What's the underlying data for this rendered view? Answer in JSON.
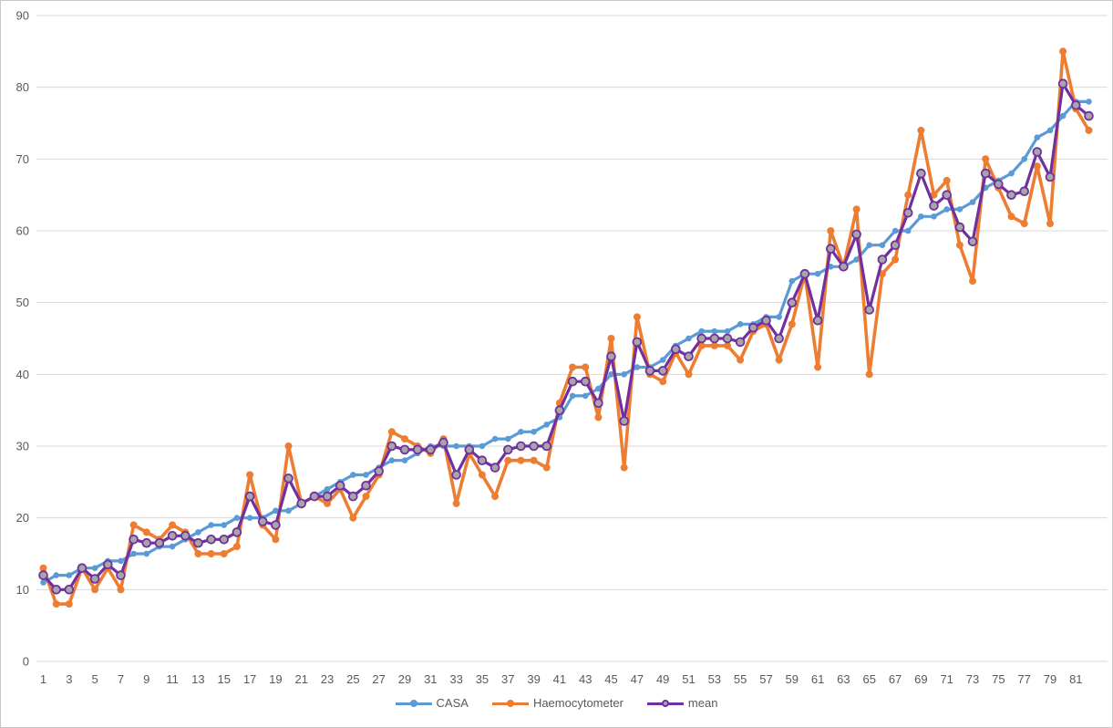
{
  "chart_data": {
    "type": "line",
    "title": "",
    "xlabel": "",
    "ylabel": "",
    "ylim": [
      0,
      90
    ],
    "ytick_step": 10,
    "grid": true,
    "legend_position": "bottom",
    "y_tick_labels": [
      "0",
      "10",
      "20",
      "30",
      "40",
      "50",
      "60",
      "70",
      "80",
      "90"
    ],
    "x_tick_labels": [
      "1",
      "3",
      "5",
      "7",
      "9",
      "11",
      "13",
      "15",
      "17",
      "19",
      "21",
      "23",
      "25",
      "27",
      "29",
      "31",
      "33",
      "35",
      "37",
      "39",
      "41",
      "43",
      "45",
      "47",
      "49",
      "51",
      "53",
      "55",
      "57",
      "59",
      "61",
      "63",
      "65",
      "67",
      "69",
      "71",
      "73",
      "75",
      "77",
      "79",
      "81"
    ],
    "x": [
      1,
      2,
      3,
      4,
      5,
      6,
      7,
      8,
      9,
      10,
      11,
      12,
      13,
      14,
      15,
      16,
      17,
      18,
      19,
      20,
      21,
      22,
      23,
      24,
      25,
      26,
      27,
      28,
      29,
      30,
      31,
      32,
      33,
      34,
      35,
      36,
      37,
      38,
      39,
      40,
      41,
      42,
      43,
      44,
      45,
      46,
      47,
      48,
      49,
      50,
      51,
      52,
      53,
      54,
      55,
      56,
      57,
      58,
      59,
      60,
      61,
      62,
      63,
      64,
      65,
      66,
      67,
      68,
      69,
      70,
      71,
      72,
      73,
      74,
      75,
      76,
      77,
      78,
      79,
      80,
      81,
      82
    ],
    "series": [
      {
        "name": "CASA",
        "color": "#5B9BD5",
        "marker": "circle",
        "values": [
          11,
          12,
          12,
          13,
          13,
          14,
          14,
          15,
          15,
          16,
          16,
          17,
          18,
          19,
          19,
          20,
          20,
          20,
          21,
          21,
          22,
          23,
          24,
          25,
          26,
          26,
          27,
          28,
          28,
          29,
          30,
          30,
          30,
          30,
          30,
          31,
          31,
          32,
          32,
          33,
          34,
          37,
          37,
          38,
          40,
          40,
          41,
          41,
          42,
          44,
          45,
          46,
          46,
          46,
          47,
          47,
          48,
          48,
          53,
          54,
          54,
          55,
          55,
          56,
          58,
          58,
          60,
          60,
          62,
          62,
          63,
          63,
          64,
          66,
          67,
          68,
          70,
          73,
          74,
          76,
          78,
          78
        ]
      },
      {
        "name": "Haemocytometer",
        "color": "#ED7D31",
        "marker": "circle",
        "values": [
          13,
          8,
          8,
          13,
          10,
          13,
          10,
          19,
          18,
          17,
          19,
          18,
          15,
          15,
          15,
          16,
          26,
          19,
          17,
          30,
          22,
          23,
          22,
          24,
          20,
          23,
          26,
          32,
          31,
          30,
          29,
          31,
          22,
          29,
          26,
          23,
          28,
          28,
          28,
          27,
          36,
          41,
          41,
          34,
          45,
          27,
          48,
          40,
          39,
          43,
          40,
          44,
          44,
          44,
          42,
          46,
          47,
          42,
          47,
          54,
          41,
          60,
          55,
          63,
          40,
          54,
          56,
          65,
          74,
          65,
          67,
          58,
          53,
          70,
          66,
          62,
          61,
          69,
          61,
          85,
          77,
          74
        ]
      },
      {
        "name": "mean",
        "color": "#7030A0",
        "marker": "circle-gray",
        "marker_fill": "#A6A6A6",
        "values": [
          12,
          10,
          10,
          13,
          11.5,
          13.5,
          12,
          17,
          16.5,
          16.5,
          17.5,
          17.5,
          16.5,
          17,
          17,
          18,
          23,
          19.5,
          19,
          25.5,
          22,
          23,
          23,
          24.5,
          23,
          24.5,
          26.5,
          30,
          29.5,
          29.5,
          29.5,
          30.5,
          26,
          29.5,
          28,
          27,
          29.5,
          30,
          30,
          30,
          35,
          39,
          39,
          36,
          42.5,
          33.5,
          44.5,
          40.5,
          40.5,
          43.5,
          42.5,
          45,
          45,
          45,
          44.5,
          46.5,
          47.5,
          45,
          50,
          54,
          47.5,
          57.5,
          55,
          59.5,
          49,
          56,
          58,
          62.5,
          68,
          63.5,
          65,
          60.5,
          58.5,
          68,
          66.5,
          65,
          65.5,
          71,
          67.5,
          80.5,
          77.5,
          76
        ]
      }
    ],
    "style": {
      "background": "#FFFFFF",
      "gridline_color": "#D9D9D9",
      "axis_label_color": "#595959",
      "font_size_px": 13
    }
  }
}
